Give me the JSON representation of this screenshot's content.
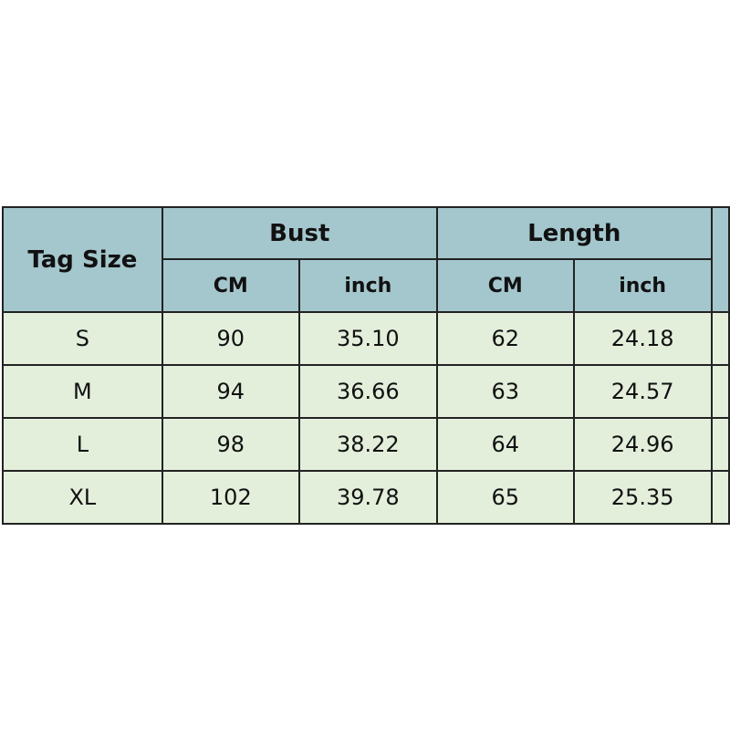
{
  "header": {
    "tag_size": "Tag Size",
    "groups": [
      "Bust",
      "Length"
    ],
    "units": [
      "CM",
      "inch",
      "CM",
      "inch"
    ]
  },
  "rows": [
    {
      "size": "S",
      "values": [
        "90",
        "35.10",
        "62",
        "24.18"
      ]
    },
    {
      "size": "M",
      "values": [
        "94",
        "36.66",
        "63",
        "24.57"
      ]
    },
    {
      "size": "L",
      "values": [
        "98",
        "38.22",
        "64",
        "24.96"
      ]
    },
    {
      "size": "XL",
      "values": [
        "102",
        "39.78",
        "65",
        "25.35"
      ]
    }
  ],
  "colors": {
    "header": "#a4c6cd",
    "body": "#e3efdb"
  }
}
